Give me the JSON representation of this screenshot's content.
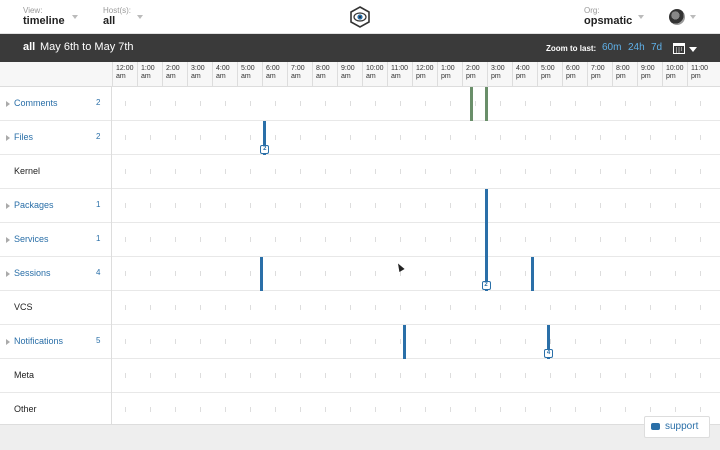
{
  "topbar": {
    "view": {
      "label": "View:",
      "value": "timeline"
    },
    "hosts": {
      "label": "Host(s):",
      "value": "all"
    },
    "org": {
      "label": "Org:",
      "value": "opsmatic"
    }
  },
  "range": {
    "scope": "all",
    "dates": "May 6th to May 7th",
    "zoom_label": "Zoom to last:",
    "zoom_options": [
      "60m",
      "24h",
      "7d"
    ]
  },
  "hours": [
    {
      "t": "12:00",
      "p": "am"
    },
    {
      "t": "1:00",
      "p": "am"
    },
    {
      "t": "2:00",
      "p": "am"
    },
    {
      "t": "3:00",
      "p": "am"
    },
    {
      "t": "4:00",
      "p": "am"
    },
    {
      "t": "5:00",
      "p": "am"
    },
    {
      "t": "6:00",
      "p": "am"
    },
    {
      "t": "7:00",
      "p": "am"
    },
    {
      "t": "8:00",
      "p": "am"
    },
    {
      "t": "9:00",
      "p": "am"
    },
    {
      "t": "10:00",
      "p": "am"
    },
    {
      "t": "11:00",
      "p": "am"
    },
    {
      "t": "12:00",
      "p": "pm"
    },
    {
      "t": "1:00",
      "p": "pm"
    },
    {
      "t": "2:00",
      "p": "pm"
    },
    {
      "t": "3:00",
      "p": "pm"
    },
    {
      "t": "4:00",
      "p": "pm"
    },
    {
      "t": "5:00",
      "p": "pm"
    },
    {
      "t": "6:00",
      "p": "pm"
    },
    {
      "t": "7:00",
      "p": "pm"
    },
    {
      "t": "8:00",
      "p": "pm"
    },
    {
      "t": "9:00",
      "p": "pm"
    },
    {
      "t": "10:00",
      "p": "pm"
    },
    {
      "t": "11:00",
      "p": "pm"
    }
  ],
  "rows": [
    {
      "label": "Comments",
      "count": "2",
      "expandable": true
    },
    {
      "label": "Files",
      "count": "2",
      "expandable": true
    },
    {
      "label": "Kernel",
      "count": "",
      "expandable": false
    },
    {
      "label": "Packages",
      "count": "1",
      "expandable": true
    },
    {
      "label": "Services",
      "count": "1",
      "expandable": true
    },
    {
      "label": "Sessions",
      "count": "4",
      "expandable": true
    },
    {
      "label": "VCS",
      "count": "",
      "expandable": false
    },
    {
      "label": "Notifications",
      "count": "5",
      "expandable": true
    },
    {
      "label": "Meta",
      "count": "",
      "expandable": false
    },
    {
      "label": "Other",
      "count": "",
      "expandable": false
    }
  ],
  "events": [
    {
      "row": 0,
      "hour": 14.3,
      "color": "#6a8f6a",
      "badge": ""
    },
    {
      "row": 0,
      "hour": 14.9,
      "color": "#6a8f6a",
      "badge": ""
    },
    {
      "row": 1,
      "hour": 6.05,
      "color": "#2a6fa8",
      "badge": "2"
    },
    {
      "row": 3,
      "hour": 14.9,
      "color": "#2a6fa8",
      "badge": ""
    },
    {
      "row": 4,
      "hour": 14.9,
      "color": "#2a6fa8",
      "badge": ""
    },
    {
      "row": 5,
      "hour": 5.9,
      "color": "#2a6fa8",
      "badge": ""
    },
    {
      "row": 5,
      "hour": 14.9,
      "color": "#2a6fa8",
      "badge": "2"
    },
    {
      "row": 5,
      "hour": 16.75,
      "color": "#2a6fa8",
      "badge": ""
    },
    {
      "row": 7,
      "hour": 11.65,
      "color": "#2a6fa8",
      "badge": ""
    },
    {
      "row": 7,
      "hour": 17.4,
      "color": "#2a6fa8",
      "badge": "4"
    }
  ],
  "support": {
    "label": "support"
  },
  "colors": {
    "accent": "#2a6fa8",
    "header_bg": "#3a3a3a",
    "zoom": "#5fb0e8"
  },
  "icons": {
    "logo": "eye-hexagon-logo-icon",
    "avatar": "globe-avatar-icon",
    "calendar": "calendar-icon",
    "support": "chat-bubble-icon"
  }
}
